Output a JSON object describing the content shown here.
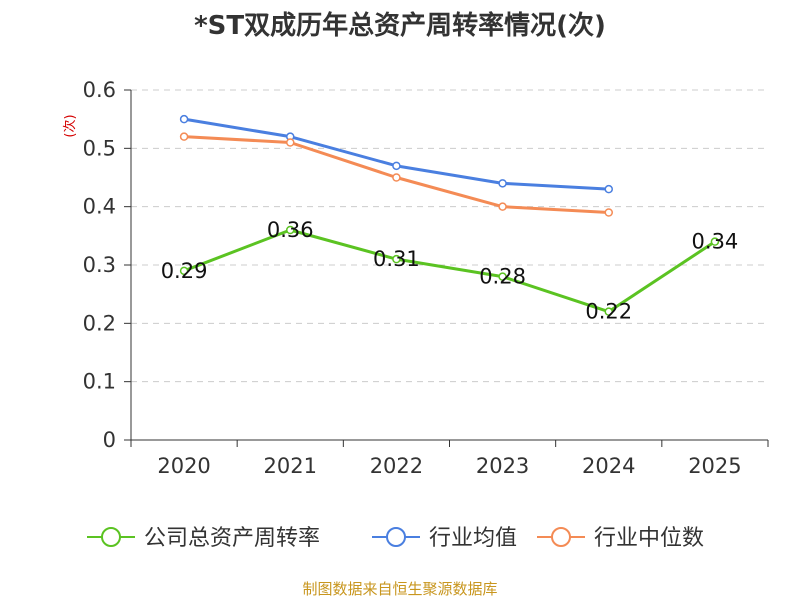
{
  "chart_data": {
    "type": "line",
    "title": "*ST双成历年总资产周转率情况(次)",
    "ylabel": "(次)",
    "xlabel": "",
    "categories": [
      "2020",
      "2021",
      "2022",
      "2023",
      "2024",
      "2025"
    ],
    "ylim": [
      0,
      0.6
    ],
    "yticks": [
      "0",
      "0.1",
      "0.2",
      "0.3",
      "0.4",
      "0.5",
      "0.6"
    ],
    "grid": true,
    "legend_position": "bottom",
    "series": [
      {
        "name": "公司总资产周转率",
        "color": "#5bc322",
        "values": [
          0.29,
          0.36,
          0.31,
          0.28,
          0.22,
          0.34
        ],
        "labels": [
          "0.29",
          "0.36",
          "0.31",
          "0.28",
          "0.22",
          "0.34"
        ],
        "show_labels": true
      },
      {
        "name": "行业均值",
        "color": "#4a7fe0",
        "values": [
          0.55,
          0.52,
          0.47,
          0.44,
          0.43,
          null
        ],
        "show_labels": false
      },
      {
        "name": "行业中位数",
        "color": "#f48b55",
        "values": [
          0.52,
          0.51,
          0.45,
          0.4,
          0.39,
          null
        ],
        "show_labels": false
      }
    ]
  },
  "source": "制图数据来自恒生聚源数据库"
}
